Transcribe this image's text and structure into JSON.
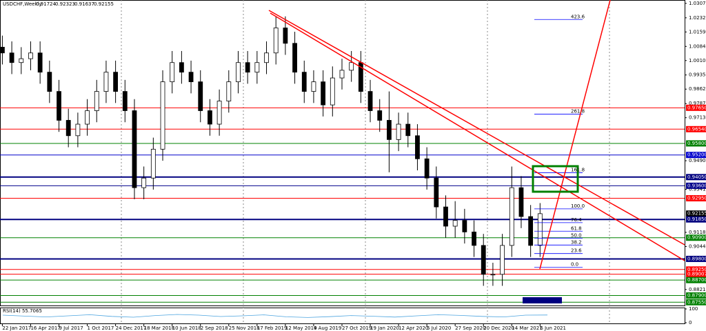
{
  "header": {
    "symbol": "USDCHF,Weekly",
    "ohlc": [
      0.91724,
      0.92323,
      0.91637,
      0.92155
    ]
  },
  "chart_data": {
    "type": "candlestick",
    "x": [
      0,
      4,
      8,
      12,
      16,
      20,
      24,
      28,
      32,
      36,
      40,
      44,
      48,
      52,
      56,
      60,
      64,
      68,
      72,
      76,
      80,
      84,
      88,
      92,
      96,
      100,
      104,
      108,
      112,
      116,
      120,
      124,
      128,
      132,
      136,
      140,
      144,
      148,
      152,
      156,
      160,
      164,
      168,
      172,
      176,
      180,
      184,
      188,
      192,
      196,
      200,
      204,
      208,
      212,
      216,
      220,
      224,
      228
    ],
    "open": [
      1.008,
      1.005,
      1.0,
      1.002,
      1.005,
      0.995,
      0.985,
      0.97,
      0.962,
      0.968,
      0.975,
      0.985,
      0.995,
      0.985,
      0.975,
      0.935,
      0.94,
      0.955,
      0.99,
      1.0,
      0.995,
      0.99,
      0.975,
      0.968,
      0.98,
      0.99,
      1.0,
      0.995,
      1.0,
      1.005,
      1.018,
      1.01,
      0.995,
      0.985,
      0.99,
      0.978,
      0.992,
      0.996,
      1.0,
      0.985,
      0.975,
      0.97,
      0.96,
      0.968,
      0.962,
      0.95,
      0.94,
      0.925,
      0.915,
      0.918,
      0.912,
      0.905,
      0.89,
      0.89,
      0.905,
      0.935,
      0.92,
      0.905
    ],
    "high": [
      1.014,
      1.011,
      1.008,
      1.011,
      1.011,
      1.001,
      0.991,
      0.976,
      0.974,
      0.981,
      0.991,
      1.001,
      1.001,
      0.991,
      0.981,
      0.946,
      0.961,
      0.996,
      1.006,
      1.006,
      1.001,
      0.996,
      0.981,
      0.986,
      0.996,
      1.006,
      1.006,
      1.006,
      1.011,
      1.024,
      1.024,
      1.016,
      1.001,
      0.996,
      0.996,
      0.998,
      1.002,
      1.006,
      1.006,
      0.991,
      0.981,
      0.985,
      0.974,
      0.974,
      0.968,
      0.956,
      0.946,
      0.931,
      0.928,
      0.924,
      0.918,
      0.911,
      0.896,
      0.911,
      0.946,
      0.941,
      0.926,
      0.927
    ],
    "low": [
      0.999,
      0.994,
      0.994,
      0.996,
      0.989,
      0.979,
      0.964,
      0.956,
      0.956,
      0.962,
      0.969,
      0.979,
      0.979,
      0.969,
      0.929,
      0.929,
      0.934,
      0.949,
      0.984,
      0.989,
      0.984,
      0.969,
      0.962,
      0.962,
      0.974,
      0.984,
      0.989,
      0.989,
      0.994,
      0.999,
      1.004,
      0.989,
      0.979,
      0.979,
      0.972,
      0.972,
      0.986,
      0.99,
      0.979,
      0.969,
      0.964,
      0.943,
      0.954,
      0.956,
      0.944,
      0.934,
      0.919,
      0.909,
      0.909,
      0.906,
      0.899,
      0.884,
      0.884,
      0.884,
      0.899,
      0.914,
      0.899,
      0.899
    ],
    "close": [
      1.005,
      1.0,
      1.002,
      1.005,
      0.995,
      0.985,
      0.97,
      0.962,
      0.968,
      0.975,
      0.985,
      0.995,
      0.985,
      0.975,
      0.935,
      0.94,
      0.955,
      0.99,
      1.0,
      0.995,
      0.99,
      0.975,
      0.968,
      0.98,
      0.99,
      1.0,
      0.995,
      1.0,
      1.005,
      1.018,
      1.01,
      0.995,
      0.985,
      0.99,
      0.978,
      0.992,
      0.996,
      1.0,
      0.985,
      0.975,
      0.97,
      0.96,
      0.968,
      0.962,
      0.95,
      0.94,
      0.925,
      0.915,
      0.918,
      0.912,
      0.905,
      0.89,
      0.89,
      0.905,
      0.935,
      0.92,
      0.905,
      0.9215
    ],
    "bull_color": "#ffffff",
    "bear_color": "#000000",
    "xlim": [
      -1,
      289.3
    ],
    "ylim": [
      0.8738,
      1.0325
    ],
    "yticks": [
      1.03075,
      1.02325,
      {
        "value": 1.0159,
        "label": "1.01590"
      },
      {
        "value": 1.0084,
        "label": "1.00840"
      },
      1.00105,
      0.99355,
      {
        "value": 0.9862,
        "label": "0.98620"
      },
      {
        "value": 0.9787,
        "label": "0.97870"
      },
      0.97135,
      {
        "value": 0.949,
        "label": "0.94900"
      },
      0.93415,
      {
        "value": 0.9118,
        "label": "0.91180"
      },
      0.90445,
      {
        "value": 0.8821,
        "label": "0.88210"
      }
    ],
    "xticks": [
      {
        "value": 0,
        "label": "22 Jan 2017"
      },
      {
        "value": 12,
        "label": "16 Apr 2017"
      },
      {
        "value": 24,
        "label": "9 Jul 2017"
      },
      {
        "value": 36,
        "label": "1 Oct 2017"
      },
      {
        "value": 48,
        "label": "24 Dec 2017"
      },
      {
        "value": 60,
        "label": "18 Mar 2018"
      },
      {
        "value": 72,
        "label": "10 Jun 2018"
      },
      {
        "value": 84,
        "label": "2 Sep 2018"
      },
      {
        "value": 96,
        "label": "25 Nov 2018"
      },
      {
        "value": 108,
        "label": "17 Feb 2019"
      },
      {
        "value": 120,
        "label": "12 May 2019"
      },
      {
        "value": 132,
        "label": "4 Aug 2019"
      },
      {
        "value": 144,
        "label": "27 Oct 2019"
      },
      {
        "value": 156,
        "label": "19 Jan 2020"
      },
      {
        "value": 168,
        "label": "12 Apr 2020"
      },
      {
        "value": 180,
        "label": "5 Jul 2020"
      },
      {
        "value": 192,
        "label": "27 Sep 2020"
      },
      {
        "value": 204,
        "label": "20 Dec 2020"
      },
      {
        "value": 216,
        "label": "14 Mar 2021"
      },
      {
        "value": 228,
        "label": "6 Jun 2021"
      }
    ],
    "levels": [
      {
        "value": 0.9765,
        "label": "0.97650",
        "color": "#ff0000"
      },
      {
        "value": 0.9654,
        "label": "0.96540",
        "color": "#ff0000"
      },
      {
        "value": 0.958,
        "label": "0.95800",
        "color": "#008000"
      },
      {
        "value": 0.952,
        "label": "0.95200",
        "color": "#0000cc"
      },
      {
        "value": 0.9405,
        "label": "0.94050",
        "color": "#000080"
      },
      {
        "value": 0.936,
        "label": "0.93600",
        "color": "#00008b"
      },
      {
        "value": 0.9295,
        "label": "0.92950",
        "color": "#ff0000"
      },
      {
        "value": 0.92155,
        "label": "0.92155",
        "color": "#000000"
      },
      {
        "value": 0.9185,
        "label": "0.91850",
        "color": "#000080"
      },
      {
        "value": 0.909,
        "label": "0.90900",
        "color": "#008000"
      },
      {
        "value": 0.898,
        "label": "0.89800",
        "color": "#000080"
      },
      {
        "value": 0.8925,
        "label": "0.89250",
        "color": "#ff0000"
      },
      {
        "value": 0.89007,
        "label": "0.89007",
        "color": "#ff0000"
      },
      {
        "value": 0.887,
        "label": "0.88700",
        "color": "#008000"
      },
      {
        "value": 0.879,
        "label": "0.87900",
        "color": "#008000"
      },
      {
        "value": 0.8755,
        "label": "0.87550",
        "color": "#008000"
      }
    ],
    "fibonacci": {
      "price_0": 0.8936,
      "price_100": 0.924,
      "color": "#0000ff",
      "levels": [
        423.6,
        261.8,
        161.8,
        {
          "value": 100,
          "label": "100.0"
        },
        76.4,
        61.8,
        {
          "value": 50,
          "label": "50.0"
        },
        38.2,
        23.6,
        {
          "value": 0,
          "label": "0.0"
        }
      ]
    },
    "rsi": {
      "label": "RSI(14) 55.7065",
      "color": "#4aa3df",
      "ylim": [
        0,
        100
      ],
      "yticks": [
        0,
        100
      ],
      "values": [
        55,
        48,
        42,
        50,
        58,
        46,
        40,
        52,
        60,
        55,
        45,
        50,
        57,
        43,
        38,
        44,
        52,
        47,
        41,
        50,
        58,
        53,
        46,
        42,
        55,
        56
      ]
    }
  }
}
